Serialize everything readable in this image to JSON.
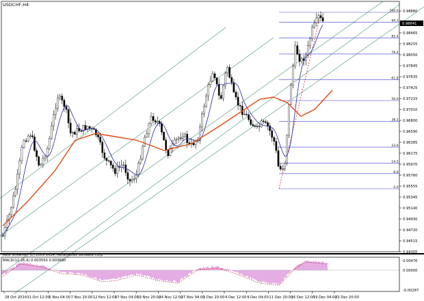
{
  "chart": {
    "symbol_title": "USDCHF,H4",
    "price_axis_labels": [
      "0.98880",
      "0.98660",
      "0.98465",
      "0.98255",
      "0.98050",
      "0.97845",
      "0.97635",
      "0.97425",
      "0.97215",
      "0.97010",
      "0.96800",
      "0.96590",
      "0.96385",
      "0.96175",
      "0.95970",
      "0.95760",
      "0.95555",
      "0.95345",
      "0.95140",
      "0.94930",
      "0.94720",
      "0.94515",
      "0.94305"
    ],
    "current_price": "0.98641",
    "fib_levels": [
      "100.0",
      "94.3",
      "85.4",
      "76.4",
      "61.8",
      "50.0",
      "38.2",
      "23.6",
      "14.5",
      "8.6",
      "0.0"
    ],
    "copyright": "Rate Streamer, (C) 2001-2014, MetaQuotes Software Corp.",
    "macd_label": "MACD(12,26,9) 0.003550 0.003680",
    "macd_axis_labels": [
      "0.00476",
      "0.00000",
      "-0.00287"
    ],
    "time_axis_labels": [
      "28 Oct 2014",
      "31 Oct 12:00",
      "5 Nov 04:00",
      "7 Nov 20:00",
      "12 Nov 12:00",
      "17 Nov 04:00",
      "19 Nov 20:00",
      "24 Nov 12:00",
      "27 Nov 04:00",
      "1 Dec 20:00",
      "4 Dec 12:00",
      "9 Dec 04:00",
      "11 Dec 20:00",
      "16 Dec 12:00",
      "19 Dec 04:00",
      "23 Dec 20:00"
    ],
    "colors": {
      "candles": "#000000",
      "fast_ma": "#3a3aa8",
      "slow_ma": "#e04a10",
      "channel": "#4a8f74",
      "fib_line": "#3a3ad0",
      "fib_trend": "#cc2020",
      "macd_hist": "#c85cc8",
      "macd_signal": "#d01020"
    }
  }
}
